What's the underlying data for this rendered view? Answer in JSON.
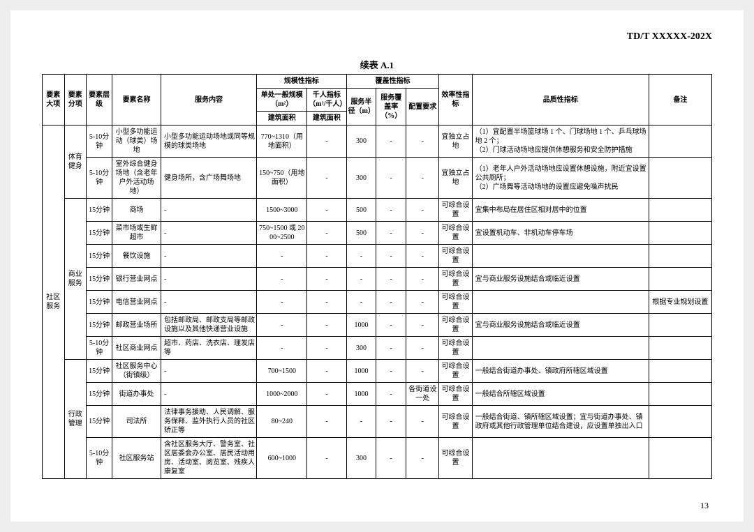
{
  "doc_id": "TD/T   XXXXX-202X",
  "table_title": "续表 A.1",
  "page_number": "13",
  "headers": {
    "col1": "要素大项",
    "col2": "要素分项",
    "col3": "要素层级",
    "col4": "要素名称",
    "col5": "服务内容",
    "grp_scale": "规模性指标",
    "col6a": "单处一般规模（m²）",
    "col6b": "千人指标（m²/千人）",
    "col6a_sub": "建筑面积",
    "col6b_sub": "建筑面积",
    "grp_cover": "覆盖性指标",
    "col7a": "服务半径（m）",
    "col7b": "服务覆盖率（%）",
    "col8": "配置要求",
    "col9": "效率性指标",
    "col10": "品质性指标",
    "col11": "备注"
  },
  "big_cat": "社区服务",
  "cats": {
    "c1": "体育健身",
    "c2": "商业服务",
    "c3": "行政管理"
  },
  "rows": [
    {
      "lvl": "5-10分钟",
      "name": "小型多功能运动（球类）场地",
      "svc": "小型多功能运动场地或同等规模的球类场地",
      "scale": "770~1310（用地面积）",
      "per": "-",
      "rad": "300",
      "cov": "-",
      "cfg": "-",
      "eff": "宜独立占地",
      "qual": "（1）宜配置半场篮球场 1 个、门球场地 1 个、乒乓球场地 2 个；\n（2）门球活动场地应提供休憩服务和安全防护措施",
      "note": ""
    },
    {
      "lvl": "5-10分钟",
      "name": "室外综合健身场地（含老年户外活动场地）",
      "svc": "健身场所，含广场舞场地",
      "scale": "150~750（用地面积）",
      "per": "-",
      "rad": "300",
      "cov": "-",
      "cfg": "-",
      "eff": "宜独立占地",
      "qual": "（1）老年人户外活动场地应设置休憩设施，附近宜设置公共厕所；\n（2）广场舞等活动场地的设置应避免噪声扰民",
      "note": ""
    },
    {
      "lvl": "15分钟",
      "name": "商场",
      "svc": "-",
      "scale": "1500~3000",
      "per": "-",
      "rad": "500",
      "cov": "-",
      "cfg": "-",
      "eff": "可综合设置",
      "qual": "宜集中布局在居住区相对居中的位置",
      "note": ""
    },
    {
      "lvl": "15分钟",
      "name": "菜市场或生鲜超市",
      "svc": "-",
      "scale": "750~1500 或 2000~2500",
      "per": "-",
      "rad": "500",
      "cov": "-",
      "cfg": "-",
      "eff": "可综合设置",
      "qual": "宜设置机动车、非机动车停车场",
      "note": ""
    },
    {
      "lvl": "15分钟",
      "name": "餐饮设施",
      "svc": "-",
      "scale": "-",
      "per": "-",
      "rad": "-",
      "cov": "-",
      "cfg": "-",
      "eff": "可综合设置",
      "qual": "",
      "note": ""
    },
    {
      "lvl": "15分钟",
      "name": "银行营业网点",
      "svc": "-",
      "scale": "-",
      "per": "-",
      "rad": "-",
      "cov": "-",
      "cfg": "-",
      "eff": "可综合设置",
      "qual": "宜与商业服务设施结合或临近设置",
      "note": ""
    },
    {
      "lvl": "15分钟",
      "name": "电信营业网点",
      "svc": "-",
      "scale": "-",
      "per": "-",
      "rad": "-",
      "cov": "-",
      "cfg": "-",
      "eff": "可综合设置",
      "qual": "",
      "note": "根据专业规划设置"
    },
    {
      "lvl": "15分钟",
      "name": "邮政营业场所",
      "svc": "包括邮政局、邮政支局等邮政设施以及其他快递营业设施",
      "scale": "-",
      "per": "-",
      "rad": "1000",
      "cov": "-",
      "cfg": "-",
      "eff": "可综合设置",
      "qual": "宜与商业服务设施结合或临近设置",
      "note": ""
    },
    {
      "lvl": "5-10分钟",
      "name": "社区商业网点",
      "svc": "超市、药店、洗衣店、理发店等",
      "scale": "-",
      "per": "-",
      "rad": "300",
      "cov": "-",
      "cfg": "-",
      "eff": "可综合设置",
      "qual": "",
      "note": ""
    },
    {
      "lvl": "15分钟",
      "name": "社区服务中心（街镇级）",
      "svc": "-",
      "scale": "700~1500",
      "per": "-",
      "rad": "1000",
      "cov": "-",
      "cfg": "-",
      "eff": "可综合设置",
      "qual": "一般结合街道办事处、镇政府所辖区域设置",
      "note": ""
    },
    {
      "lvl": "15分钟",
      "name": "街道办事处",
      "svc": "-",
      "scale": "1000~2000",
      "per": "-",
      "rad": "1000",
      "cov": "-",
      "cfg": "各街道设一处",
      "eff": "可综合设置",
      "qual": "一般结合所辖区域设置",
      "note": ""
    },
    {
      "lvl": "15分钟",
      "name": "司法所",
      "svc": "法律事务援助、人民调解、服务保释、监外执行人员的社区矫正等",
      "scale": "80~240",
      "per": "-",
      "rad": "-",
      "cov": "-",
      "cfg": "-",
      "eff": "可综合设置",
      "qual": "一般结合街道、镇所辖区域设置；宜与街道办事处、镇政府或其他行政管理单位结合建设，应设置单独出入口",
      "note": ""
    },
    {
      "lvl": "5-10分钟",
      "name": "社区服务站",
      "svc": "含社区服务大厅、警务室、社区居委会办公室、居民活动用房、活动室、阅览室、残疾人康复室",
      "scale": "600~1000",
      "per": "-",
      "rad": "300",
      "cov": "-",
      "cfg": "-",
      "eff": "可综合设置",
      "qual": "",
      "note": ""
    }
  ]
}
